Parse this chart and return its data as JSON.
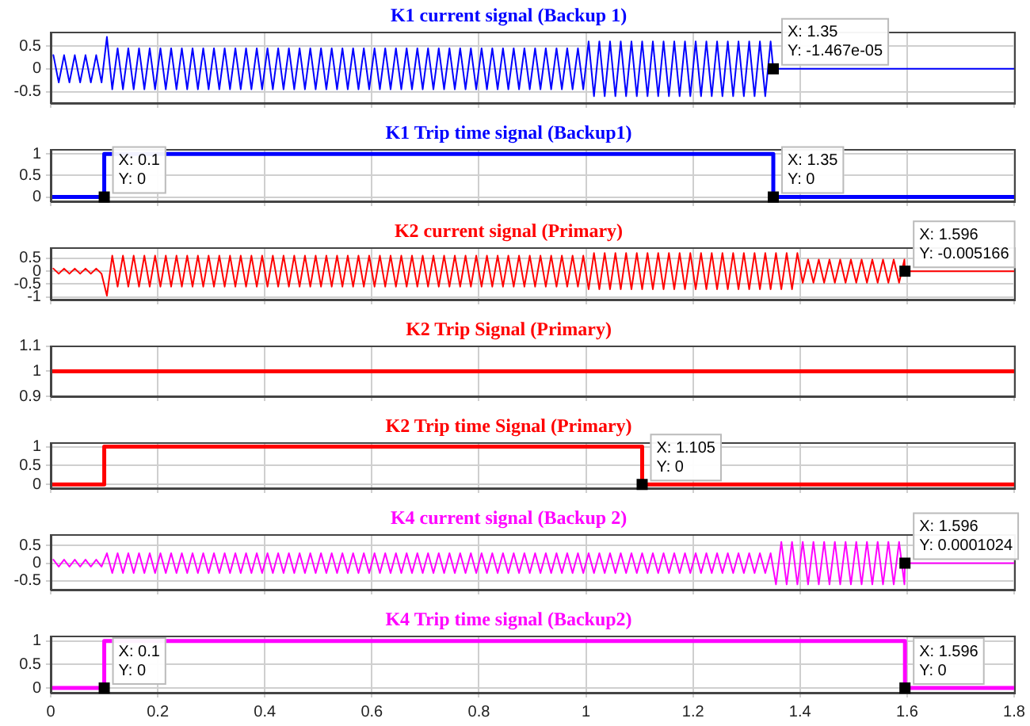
{
  "chart_data": [
    {
      "type": "line",
      "title": "K1 current signal (Backup 1)",
      "xlim": [
        0,
        1.8
      ],
      "xticks": [
        0,
        0.2,
        0.4,
        0.6,
        0.8,
        1,
        1.2,
        1.4,
        1.6,
        1.8
      ],
      "ylim": [
        -0.75,
        0.8
      ],
      "yticks": [
        -0.5,
        0,
        0.5
      ],
      "grid": true,
      "tick_labels": "y",
      "series": [
        {
          "color": "#0000ff",
          "x": [
            0.005,
            0.015,
            0.025,
            0.035,
            0.045,
            0.055,
            0.065,
            0.075,
            0.085,
            0.095,
            0.105,
            0.115,
            0.125,
            0.135,
            0.145,
            0.155,
            0.165,
            0.175,
            0.185,
            0.195,
            0.205,
            0.215,
            0.225,
            0.235,
            0.245,
            0.255,
            0.265,
            0.275,
            0.285,
            0.295,
            0.305,
            0.315,
            0.325,
            0.335,
            0.345,
            0.355,
            0.365,
            0.375,
            0.385,
            0.395,
            0.405,
            0.415,
            0.425,
            0.435,
            0.445,
            0.455,
            0.465,
            0.475,
            0.485,
            0.495,
            0.505,
            0.515,
            0.525,
            0.535,
            0.545,
            0.555,
            0.565,
            0.575,
            0.585,
            0.595,
            0.605,
            0.615,
            0.625,
            0.635,
            0.645,
            0.655,
            0.665,
            0.675,
            0.685,
            0.695,
            0.705,
            0.715,
            0.725,
            0.735,
            0.745,
            0.755,
            0.765,
            0.775,
            0.785,
            0.795,
            0.805,
            0.815,
            0.825,
            0.835,
            0.845,
            0.855,
            0.865,
            0.875,
            0.885,
            0.895,
            0.905,
            0.915,
            0.925,
            0.935,
            0.945,
            0.955,
            0.965,
            0.975,
            0.985,
            0.995,
            1.005,
            1.015,
            1.025,
            1.035,
            1.045,
            1.055,
            1.065,
            1.075,
            1.085,
            1.095,
            1.105,
            1.115,
            1.125,
            1.135,
            1.145,
            1.155,
            1.165,
            1.175,
            1.185,
            1.195,
            1.205,
            1.215,
            1.225,
            1.235,
            1.245,
            1.255,
            1.265,
            1.275,
            1.285,
            1.295,
            1.305,
            1.315,
            1.325,
            1.335,
            1.345,
            1.35,
            1.8
          ],
          "values": [
            0.3,
            -0.3,
            0.3,
            -0.3,
            0.3,
            -0.3,
            0.3,
            -0.3,
            0.3,
            -0.3,
            0.7,
            -0.45,
            0.45,
            -0.45,
            0.45,
            -0.45,
            0.45,
            -0.45,
            0.45,
            -0.45,
            0.45,
            -0.45,
            0.45,
            -0.45,
            0.45,
            -0.45,
            0.45,
            -0.45,
            0.45,
            -0.45,
            0.45,
            -0.45,
            0.45,
            -0.45,
            0.45,
            -0.45,
            0.45,
            -0.45,
            0.45,
            -0.45,
            0.45,
            -0.45,
            0.45,
            -0.45,
            0.45,
            -0.45,
            0.45,
            -0.45,
            0.45,
            -0.45,
            0.45,
            -0.45,
            0.45,
            -0.45,
            0.45,
            -0.45,
            0.45,
            -0.45,
            0.45,
            -0.45,
            0.45,
            -0.45,
            0.45,
            -0.45,
            0.45,
            -0.45,
            0.45,
            -0.45,
            0.45,
            -0.45,
            0.45,
            -0.45,
            0.45,
            -0.45,
            0.45,
            -0.45,
            0.45,
            -0.45,
            0.45,
            -0.45,
            0.45,
            -0.45,
            0.45,
            -0.45,
            0.45,
            -0.45,
            0.45,
            -0.45,
            0.45,
            -0.45,
            0.45,
            -0.45,
            0.45,
            -0.45,
            0.45,
            -0.45,
            0.45,
            -0.45,
            0.45,
            -0.45,
            0.6,
            -0.6,
            0.6,
            -0.6,
            0.6,
            -0.6,
            0.6,
            -0.6,
            0.6,
            -0.6,
            0.6,
            -0.6,
            0.6,
            -0.6,
            0.6,
            -0.6,
            0.6,
            -0.6,
            0.6,
            -0.6,
            0.6,
            -0.6,
            0.6,
            -0.6,
            0.6,
            -0.6,
            0.6,
            -0.6,
            0.6,
            -0.6,
            0.6,
            -0.6,
            0.6,
            -0.6,
            0.6,
            0,
            0
          ]
        }
      ],
      "annotations": [
        {
          "text": "X: 1.35\nY: -1.467e-05",
          "x": 1.35,
          "y": 0
        }
      ]
    },
    {
      "type": "step",
      "title": "K1 Trip time signal (Backup1)",
      "xlim": [
        0,
        1.8
      ],
      "xticks": [
        0,
        0.2,
        0.4,
        0.6,
        0.8,
        1,
        1.2,
        1.4,
        1.6,
        1.8
      ],
      "ylim": [
        -0.1,
        1.1
      ],
      "yticks": [
        0,
        0.5,
        1
      ],
      "grid": true,
      "tick_labels": "y",
      "series": [
        {
          "color": "#0000ff",
          "x": [
            0,
            0.1,
            1.35,
            1.8
          ],
          "values": [
            0,
            1,
            0,
            0
          ]
        }
      ],
      "annotations": [
        {
          "text": "X: 0.1\nY: 0",
          "x": 0.1,
          "y": 0
        },
        {
          "text": "X: 1.35\nY: 0",
          "x": 1.35,
          "y": 0
        }
      ]
    },
    {
      "type": "line",
      "title": "K2 current signal (Primary)",
      "xlim": [
        0,
        1.8
      ],
      "xticks": [
        0,
        0.2,
        0.4,
        0.6,
        0.8,
        1,
        1.2,
        1.4,
        1.6,
        1.8
      ],
      "ylim": [
        -1.1,
        0.9
      ],
      "yticks": [
        -1,
        -0.5,
        0,
        0.5
      ],
      "grid": true,
      "tick_labels": "y",
      "series": [
        {
          "color": "#ff0000",
          "x": [
            0.005,
            0.015,
            0.025,
            0.035,
            0.045,
            0.055,
            0.065,
            0.075,
            0.085,
            0.095,
            0.105,
            0.115,
            0.125,
            0.135,
            0.145,
            0.155,
            0.165,
            0.175,
            0.185,
            0.195,
            0.205,
            0.215,
            0.225,
            0.235,
            0.245,
            0.255,
            0.265,
            0.275,
            0.285,
            0.295,
            0.305,
            0.315,
            0.325,
            0.335,
            0.345,
            0.355,
            0.365,
            0.375,
            0.385,
            0.395,
            0.405,
            0.415,
            0.425,
            0.435,
            0.445,
            0.455,
            0.465,
            0.475,
            0.485,
            0.495,
            0.505,
            0.515,
            0.525,
            0.535,
            0.545,
            0.555,
            0.565,
            0.575,
            0.585,
            0.595,
            0.605,
            0.615,
            0.625,
            0.635,
            0.645,
            0.655,
            0.665,
            0.675,
            0.685,
            0.695,
            0.705,
            0.715,
            0.725,
            0.735,
            0.745,
            0.755,
            0.765,
            0.775,
            0.785,
            0.795,
            0.805,
            0.815,
            0.825,
            0.835,
            0.845,
            0.855,
            0.865,
            0.875,
            0.885,
            0.895,
            0.905,
            0.915,
            0.925,
            0.935,
            0.945,
            0.955,
            0.965,
            0.975,
            0.985,
            0.995,
            1.005,
            1.015,
            1.025,
            1.035,
            1.045,
            1.055,
            1.065,
            1.075,
            1.085,
            1.095,
            1.105,
            1.115,
            1.125,
            1.135,
            1.145,
            1.155,
            1.165,
            1.175,
            1.185,
            1.195,
            1.205,
            1.215,
            1.225,
            1.235,
            1.245,
            1.255,
            1.265,
            1.275,
            1.285,
            1.295,
            1.305,
            1.315,
            1.325,
            1.335,
            1.345,
            1.355,
            1.365,
            1.375,
            1.385,
            1.395,
            1.405,
            1.415,
            1.425,
            1.435,
            1.445,
            1.455,
            1.465,
            1.475,
            1.485,
            1.495,
            1.505,
            1.515,
            1.525,
            1.535,
            1.545,
            1.555,
            1.565,
            1.575,
            1.585,
            1.595,
            1.596,
            1.8
          ],
          "values": [
            0.1,
            -0.1,
            0.1,
            -0.1,
            0.1,
            -0.1,
            0.1,
            -0.1,
            0.1,
            -0.1,
            -0.95,
            0.6,
            -0.6,
            0.6,
            -0.6,
            0.6,
            -0.6,
            0.6,
            -0.6,
            0.6,
            -0.6,
            0.6,
            -0.6,
            0.6,
            -0.6,
            0.6,
            -0.6,
            0.6,
            -0.6,
            0.6,
            -0.6,
            0.6,
            -0.6,
            0.6,
            -0.6,
            0.6,
            -0.6,
            0.6,
            -0.6,
            0.6,
            -0.6,
            0.6,
            -0.6,
            0.6,
            -0.6,
            0.6,
            -0.6,
            0.6,
            -0.6,
            0.6,
            -0.6,
            0.6,
            -0.6,
            0.6,
            -0.6,
            0.6,
            -0.6,
            0.6,
            -0.6,
            0.6,
            -0.6,
            0.6,
            -0.6,
            0.6,
            -0.6,
            0.6,
            -0.6,
            0.6,
            -0.6,
            0.6,
            -0.6,
            0.6,
            -0.6,
            0.6,
            -0.6,
            0.6,
            -0.6,
            0.6,
            -0.6,
            0.6,
            -0.6,
            0.6,
            -0.6,
            0.6,
            -0.6,
            0.6,
            -0.6,
            0.6,
            -0.6,
            0.6,
            -0.6,
            0.6,
            -0.6,
            0.6,
            -0.6,
            0.6,
            -0.6,
            0.6,
            -0.6,
            0.6,
            -0.7,
            0.7,
            -0.7,
            0.7,
            -0.7,
            0.7,
            -0.7,
            0.7,
            -0.7,
            0.7,
            -0.7,
            0.7,
            -0.7,
            0.7,
            -0.7,
            0.7,
            -0.7,
            0.7,
            -0.7,
            0.7,
            -0.7,
            0.7,
            -0.7,
            0.7,
            -0.7,
            0.7,
            -0.7,
            0.7,
            -0.7,
            0.7,
            -0.7,
            0.7,
            -0.7,
            0.7,
            -0.7,
            0.7,
            -0.7,
            0.7,
            -0.7,
            0.7,
            -0.45,
            0.45,
            -0.45,
            0.45,
            -0.45,
            0.45,
            -0.45,
            0.45,
            -0.45,
            0.45,
            -0.45,
            0.45,
            -0.45,
            0.45,
            -0.45,
            0.45,
            -0.45,
            0.45,
            -0.45,
            0.45,
            0,
            0
          ]
        }
      ],
      "annotations": [
        {
          "text": "X: 1.596\nY: -0.005166",
          "x": 1.596,
          "y": 0
        }
      ]
    },
    {
      "type": "line",
      "title": "K2 Trip Signal (Primary)",
      "xlim": [
        0,
        1.8
      ],
      "xticks": [
        0,
        0.2,
        0.4,
        0.6,
        0.8,
        1,
        1.2,
        1.4,
        1.6,
        1.8
      ],
      "ylim": [
        0.9,
        1.1
      ],
      "yticks": [
        0.9,
        1,
        1.1
      ],
      "grid": true,
      "tick_labels": "y",
      "series": [
        {
          "color": "#ff0000",
          "x": [
            0,
            1.8
          ],
          "values": [
            1,
            1
          ]
        }
      ]
    },
    {
      "type": "step",
      "title": "K2 Trip time Signal (Primary)",
      "xlim": [
        0,
        1.8
      ],
      "xticks": [
        0,
        0.2,
        0.4,
        0.6,
        0.8,
        1,
        1.2,
        1.4,
        1.6,
        1.8
      ],
      "ylim": [
        -0.1,
        1.1
      ],
      "yticks": [
        0,
        0.5,
        1
      ],
      "grid": true,
      "tick_labels": "y",
      "series": [
        {
          "color": "#ff0000",
          "x": [
            0,
            0.1,
            1.105,
            1.8
          ],
          "values": [
            0,
            1,
            0,
            0
          ]
        }
      ],
      "annotations": [
        {
          "text": "X: 1.105\nY: 0",
          "x": 1.105,
          "y": 0
        }
      ]
    },
    {
      "type": "line",
      "title": "K4 current signal (Backup 2)",
      "xlim": [
        0,
        1.8
      ],
      "xticks": [
        0,
        0.2,
        0.4,
        0.6,
        0.8,
        1,
        1.2,
        1.4,
        1.6,
        1.8
      ],
      "ylim": [
        -0.75,
        0.8
      ],
      "yticks": [
        -0.5,
        0,
        0.5
      ],
      "grid": true,
      "tick_labels": "y",
      "series": [
        {
          "color": "#ff00ff",
          "x": [
            0.005,
            0.015,
            0.025,
            0.035,
            0.045,
            0.055,
            0.065,
            0.075,
            0.085,
            0.095,
            0.105,
            0.115,
            0.125,
            0.135,
            0.145,
            0.155,
            0.165,
            0.175,
            0.185,
            0.195,
            0.205,
            0.215,
            0.225,
            0.235,
            0.245,
            0.255,
            0.265,
            0.275,
            0.285,
            0.295,
            0.305,
            0.315,
            0.325,
            0.335,
            0.345,
            0.355,
            0.365,
            0.375,
            0.385,
            0.395,
            0.405,
            0.415,
            0.425,
            0.435,
            0.445,
            0.455,
            0.465,
            0.475,
            0.485,
            0.495,
            0.505,
            0.515,
            0.525,
            0.535,
            0.545,
            0.555,
            0.565,
            0.575,
            0.585,
            0.595,
            0.605,
            0.615,
            0.625,
            0.635,
            0.645,
            0.655,
            0.665,
            0.675,
            0.685,
            0.695,
            0.705,
            0.715,
            0.725,
            0.735,
            0.745,
            0.755,
            0.765,
            0.775,
            0.785,
            0.795,
            0.805,
            0.815,
            0.825,
            0.835,
            0.845,
            0.855,
            0.865,
            0.875,
            0.885,
            0.895,
            0.905,
            0.915,
            0.925,
            0.935,
            0.945,
            0.955,
            0.965,
            0.975,
            0.985,
            0.995,
            1.005,
            1.015,
            1.025,
            1.035,
            1.045,
            1.055,
            1.065,
            1.075,
            1.085,
            1.095,
            1.105,
            1.115,
            1.125,
            1.135,
            1.145,
            1.155,
            1.165,
            1.175,
            1.185,
            1.195,
            1.205,
            1.215,
            1.225,
            1.235,
            1.245,
            1.255,
            1.265,
            1.275,
            1.285,
            1.295,
            1.305,
            1.315,
            1.325,
            1.335,
            1.345,
            1.355,
            1.365,
            1.375,
            1.385,
            1.395,
            1.405,
            1.415,
            1.425,
            1.435,
            1.445,
            1.455,
            1.465,
            1.475,
            1.485,
            1.495,
            1.505,
            1.515,
            1.525,
            1.535,
            1.545,
            1.555,
            1.565,
            1.575,
            1.585,
            1.595,
            1.596,
            1.8
          ],
          "values": [
            0.1,
            -0.1,
            0.1,
            -0.1,
            0.1,
            -0.1,
            0.1,
            -0.1,
            0.1,
            -0.1,
            0.28,
            -0.28,
            0.28,
            -0.28,
            0.28,
            -0.28,
            0.28,
            -0.28,
            0.28,
            -0.28,
            0.28,
            -0.28,
            0.28,
            -0.28,
            0.28,
            -0.28,
            0.28,
            -0.28,
            0.28,
            -0.28,
            0.28,
            -0.28,
            0.28,
            -0.28,
            0.28,
            -0.28,
            0.28,
            -0.28,
            0.28,
            -0.28,
            0.28,
            -0.28,
            0.28,
            -0.28,
            0.28,
            -0.28,
            0.28,
            -0.28,
            0.28,
            -0.28,
            0.28,
            -0.28,
            0.28,
            -0.28,
            0.28,
            -0.28,
            0.28,
            -0.28,
            0.28,
            -0.28,
            0.28,
            -0.28,
            0.28,
            -0.28,
            0.28,
            -0.28,
            0.28,
            -0.28,
            0.28,
            -0.28,
            0.28,
            -0.28,
            0.28,
            -0.28,
            0.28,
            -0.28,
            0.28,
            -0.28,
            0.28,
            -0.28,
            0.28,
            -0.28,
            0.28,
            -0.28,
            0.28,
            -0.28,
            0.28,
            -0.28,
            0.28,
            -0.28,
            0.28,
            -0.28,
            0.28,
            -0.28,
            0.28,
            -0.28,
            0.28,
            -0.28,
            0.28,
            -0.28,
            0.28,
            -0.28,
            0.28,
            -0.28,
            0.28,
            -0.28,
            0.28,
            -0.28,
            0.28,
            -0.28,
            0.28,
            -0.28,
            0.28,
            -0.28,
            0.28,
            -0.28,
            0.28,
            -0.28,
            0.28,
            -0.28,
            0.28,
            -0.28,
            0.28,
            -0.28,
            0.28,
            -0.28,
            0.28,
            -0.28,
            0.28,
            -0.28,
            0.28,
            -0.28,
            0.28,
            -0.28,
            0.28,
            -0.6,
            0.6,
            -0.6,
            0.6,
            -0.6,
            0.6,
            -0.6,
            0.6,
            -0.6,
            0.6,
            -0.6,
            0.6,
            -0.6,
            0.6,
            -0.6,
            0.6,
            -0.6,
            0.6,
            -0.6,
            0.6,
            -0.6,
            0.6,
            -0.6,
            0.6,
            -0.6,
            0,
            0
          ]
        }
      ],
      "annotations": [
        {
          "text": "X: 1.596\nY: 0.0001024",
          "x": 1.596,
          "y": 0
        }
      ]
    },
    {
      "type": "step",
      "title": "K4 Trip time signal (Backup2)",
      "xlim": [
        0,
        1.8
      ],
      "xticks": [
        0,
        0.2,
        0.4,
        0.6,
        0.8,
        1,
        1.2,
        1.4,
        1.6,
        1.8
      ],
      "ylim": [
        -0.1,
        1.1
      ],
      "yticks": [
        0,
        0.5,
        1
      ],
      "grid": true,
      "series": [
        {
          "color": "#ff00ff",
          "x": [
            0,
            0.1,
            1.596,
            1.8
          ],
          "values": [
            0,
            1,
            0,
            0
          ]
        }
      ],
      "annotations": [
        {
          "text": "X: 0.1\nY: 0",
          "x": 0.1,
          "y": 0
        },
        {
          "text": "X: 1.596\nY: 0",
          "x": 1.596,
          "y": 0
        }
      ]
    }
  ]
}
